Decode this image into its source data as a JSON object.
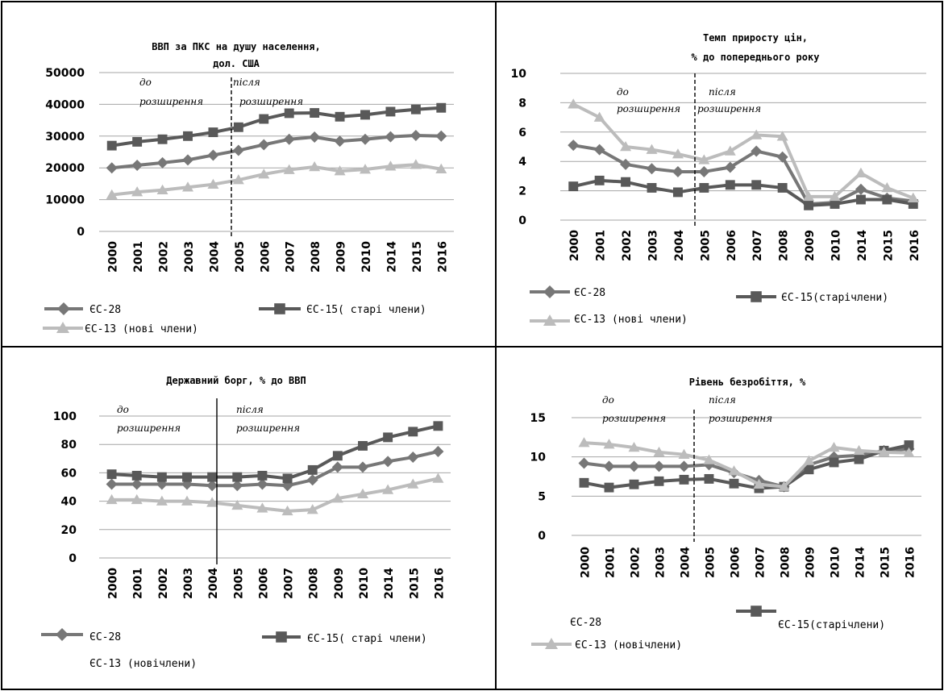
{
  "chart_data": [
    {
      "type": "line",
      "title": "ВВП за ПКС на душу населення, дол. США",
      "title_lines": [
        "ВВП за ПКС на душу населення,",
        "дол. США"
      ],
      "categories": [
        "2000",
        "2001",
        "2002",
        "2003",
        "2004",
        "2005",
        "2006",
        "2007",
        "2008",
        "2009",
        "2010",
        "2014",
        "2015",
        "2016"
      ],
      "ylim": [
        0,
        50000
      ],
      "yticks": [
        "0",
        "10000",
        "20000",
        "30000",
        "40000",
        "50000"
      ],
      "grid": true,
      "divider": "dashed",
      "annotations": {
        "before": [
          "до",
          "розширення"
        ],
        "after": [
          "після",
          "розширення"
        ]
      },
      "legend_labels": {
        "eu28": "ЄС-28",
        "eu15": "ЄС-15( старі члени)",
        "eu13": "ЄС-13  (нові члени)"
      },
      "series": [
        {
          "name": "ЄС-28",
          "color": "#777777",
          "marker": "diamond",
          "values": [
            20000,
            20800,
            21600,
            22500,
            24000,
            25500,
            27300,
            29000,
            29700,
            28400,
            29000,
            29800,
            30200,
            30000
          ]
        },
        {
          "name": "ЄС-15( старі члени)",
          "color": "#595959",
          "marker": "square",
          "values": [
            27000,
            28200,
            29000,
            30000,
            31200,
            32800,
            35400,
            37200,
            37300,
            36100,
            36700,
            37700,
            38400,
            38900
          ]
        },
        {
          "name": "ЄС-13  (нові члени)",
          "color": "#bcbcbc",
          "marker": "triangle",
          "values": [
            11500,
            12400,
            13000,
            13900,
            14800,
            16200,
            18000,
            19400,
            20300,
            19000,
            19500,
            20500,
            21000,
            19600
          ]
        }
      ]
    },
    {
      "type": "line",
      "title": "Темп приросту цін, % до попереднього року",
      "title_lines": [
        "Темп приросту цін,",
        "% до попереднього року"
      ],
      "categories": [
        "2000",
        "2001",
        "2002",
        "2003",
        "2004",
        "2005",
        "2006",
        "2007",
        "2008",
        "2009",
        "2010",
        "2014",
        "2015",
        "2016"
      ],
      "ylim": [
        0,
        10
      ],
      "yticks": [
        "0",
        "2",
        "4",
        "6",
        "8",
        "10"
      ],
      "grid": true,
      "divider": "dashed",
      "annotations": {
        "before": [
          "до",
          "розширення"
        ],
        "after": [
          "після",
          "розширення"
        ]
      },
      "legend_labels": {
        "eu28": "ЄС-28",
        "eu15": "ЄС-15(старічлени)",
        "eu13": "ЄС-13 (нові члени)"
      },
      "series": [
        {
          "name": "ЄС-28",
          "color": "#777777",
          "marker": "diamond",
          "values": [
            5.1,
            4.8,
            3.8,
            3.5,
            3.3,
            3.3,
            3.6,
            4.7,
            4.3,
            1.1,
            1.2,
            2.1,
            1.5,
            1.3
          ]
        },
        {
          "name": "ЄС-15(старічлени)",
          "color": "#595959",
          "marker": "square",
          "values": [
            2.3,
            2.7,
            2.6,
            2.2,
            1.9,
            2.2,
            2.4,
            2.4,
            2.2,
            1.0,
            1.1,
            1.4,
            1.4,
            1.1
          ]
        },
        {
          "name": "ЄС-13 (нові члени)",
          "color": "#bcbcbc",
          "marker": "triangle",
          "values": [
            7.9,
            7.0,
            5.0,
            4.8,
            4.5,
            4.1,
            4.7,
            5.8,
            5.7,
            1.6,
            1.6,
            3.2,
            2.2,
            1.5
          ]
        }
      ]
    },
    {
      "type": "line",
      "title": "Державний борг, % до ВВП",
      "title_lines": [
        "Державний борг, % до ВВП"
      ],
      "categories": [
        "2000",
        "2001",
        "2002",
        "2003",
        "2004",
        "2005",
        "2006",
        "2007",
        "2008",
        "2009",
        "2010",
        "2014",
        "2015",
        "2016"
      ],
      "ylim": [
        0,
        100
      ],
      "yticks": [
        "0",
        "20",
        "40",
        "60",
        "80",
        "100"
      ],
      "grid": true,
      "divider": "solid",
      "annotations": {
        "before": [
          "до",
          "розширення"
        ],
        "after": [
          "після",
          "розширення"
        ]
      },
      "legend_labels": {
        "eu28": "ЄС-28",
        "eu15": "ЄС-15(   старі члени)",
        "eu13": "ЄС-13 (новічлени)"
      },
      "series": [
        {
          "name": "ЄС-28",
          "color": "#777777",
          "marker": "diamond",
          "values": [
            52,
            52,
            52,
            52,
            51,
            51,
            52,
            51,
            55,
            64,
            64,
            68,
            71,
            75
          ]
        },
        {
          "name": "ЄС-15(   старі члени)",
          "color": "#595959",
          "marker": "square",
          "values": [
            59,
            58,
            57,
            57,
            57,
            57,
            58,
            56,
            62,
            72,
            79,
            85,
            89,
            93
          ]
        },
        {
          "name": "ЄС-13 (новічлени)",
          "color": "#bcbcbc",
          "marker": "triangle",
          "values": [
            41,
            41,
            40,
            40,
            39,
            37,
            35,
            33,
            34,
            42,
            45,
            48,
            52,
            56
          ]
        }
      ]
    },
    {
      "type": "line",
      "title": "Рівень безробіття, %",
      "title_lines": [
        "Рівень безробіття, %"
      ],
      "categories": [
        "2000",
        "2001",
        "2002",
        "2003",
        "2004",
        "2005",
        "2006",
        "2007",
        "2008",
        "2009",
        "2010",
        "2014",
        "2015",
        "2016"
      ],
      "ylim": [
        0,
        15
      ],
      "yticks": [
        "0",
        "5",
        "10",
        "15"
      ],
      "grid": true,
      "divider": "dashed",
      "annotations": {
        "before": [
          "до",
          "розширення"
        ],
        "after": [
          "після",
          "розширення"
        ]
      },
      "legend_labels": {
        "eu28": "ЄС-28",
        "eu15": "ЄС-15(старічлени)",
        "eu13": "ЄС-13 (новічлени)"
      },
      "series": [
        {
          "name": "ЄС-28",
          "color": "#777777",
          "marker": "diamond",
          "values": [
            9.2,
            8.8,
            8.8,
            8.8,
            8.8,
            9.0,
            8.0,
            7.0,
            6.2,
            9.0,
            10.0,
            10.2,
            10.8,
            11.0
          ]
        },
        {
          "name": "ЄС-15(старічлени)",
          "color": "#595959",
          "marker": "square",
          "values": [
            6.7,
            6.1,
            6.5,
            6.9,
            7.1,
            7.2,
            6.6,
            6.0,
            6.2,
            8.4,
            9.3,
            9.7,
            10.8,
            11.5
          ]
        },
        {
          "name": "ЄС-13 (новічлени)",
          "color": "#bcbcbc",
          "marker": "triangle",
          "values": [
            11.8,
            11.6,
            11.2,
            10.6,
            10.3,
            9.6,
            8.2,
            6.5,
            6.2,
            9.5,
            11.2,
            10.8,
            10.6,
            10.5
          ]
        }
      ]
    }
  ]
}
